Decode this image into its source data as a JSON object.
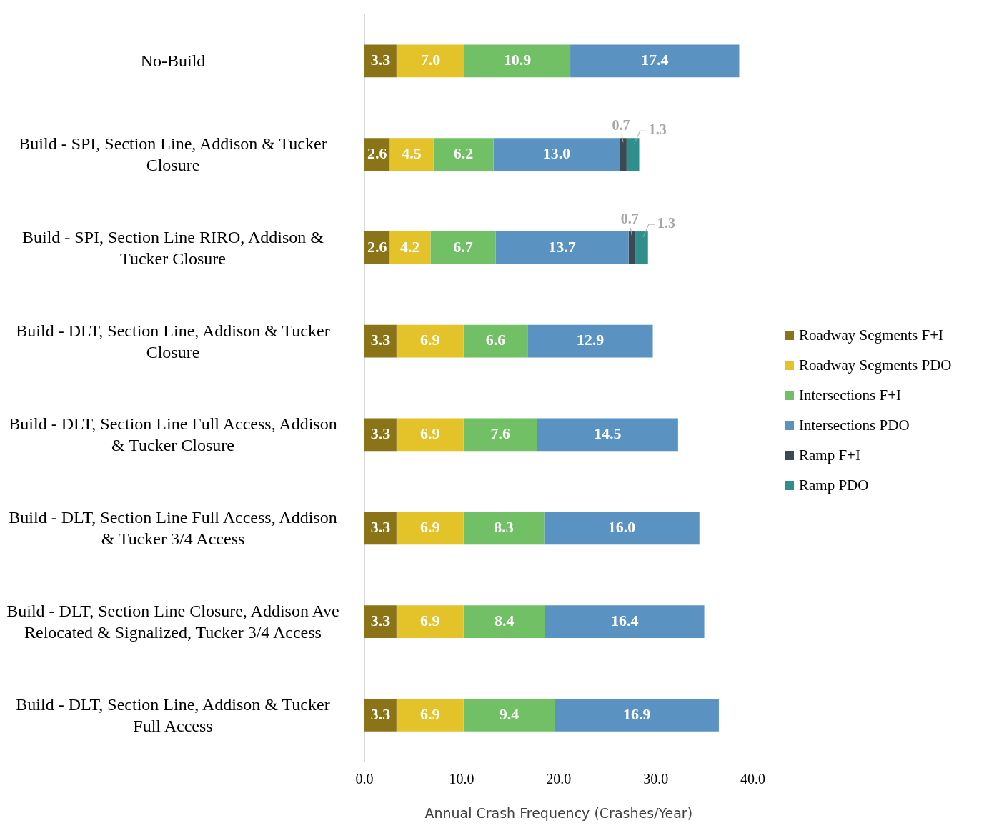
{
  "chart_data": {
    "type": "bar",
    "orientation": "horizontal",
    "stacked": true,
    "categories": [
      "No-Build",
      "Build - SPI, Section Line, Addison & Tucker Closure",
      "Build - SPI, Section Line RIRO, Addison & Tucker Closure",
      "Build - DLT, Section Line, Addison & Tucker Closure",
      "Build - DLT, Section Line Full Access, Addison & Tucker Closure",
      "Build - DLT, Section Line Full Access, Addison & Tucker 3/4 Access",
      "Build - DLT, Section Line Closure, Addison Ave Relocated & Signalized, Tucker 3/4 Access",
      "Build - DLT, Section Line, Addison & Tucker Full Access"
    ],
    "series": [
      {
        "name": "Roadway Segments F+I",
        "color": "#8b7317",
        "values": [
          3.3,
          2.6,
          2.6,
          3.3,
          3.3,
          3.3,
          3.3,
          3.3
        ],
        "value_labels": [
          "3.3",
          "2.6",
          "2.6",
          "3.3",
          "3.3",
          "3.3",
          "3.3",
          "3.3"
        ]
      },
      {
        "name": "Roadway Segments PDO",
        "color": "#e3c22a",
        "values": [
          7.0,
          4.5,
          4.2,
          6.9,
          6.9,
          6.9,
          6.9,
          6.9
        ],
        "value_labels": [
          "7.0",
          "4.5",
          "4.2",
          "6.9",
          "6.9",
          "6.9",
          "6.9",
          "6.9"
        ]
      },
      {
        "name": "Intersections F+I",
        "color": "#72c066",
        "values": [
          10.9,
          6.2,
          6.7,
          6.6,
          7.6,
          8.3,
          8.4,
          9.4
        ],
        "value_labels": [
          "10.9",
          "6.2",
          "6.7",
          "6.6",
          "7.6",
          "8.3",
          "8.4",
          "9.4"
        ]
      },
      {
        "name": "Intersections PDO",
        "color": "#5a93c2",
        "values": [
          17.4,
          13.0,
          13.7,
          12.9,
          14.5,
          16.0,
          16.4,
          16.9
        ],
        "value_labels": [
          "17.4",
          "13.0",
          "13.7",
          "12.9",
          "14.5",
          "16.0",
          "16.4",
          "16.9"
        ]
      },
      {
        "name": "Ramp F+I",
        "color": "#3a4a55",
        "values": [
          null,
          0.7,
          0.7,
          null,
          null,
          null,
          null,
          null
        ],
        "value_labels": [
          null,
          "0.7",
          "0.7",
          null,
          null,
          null,
          null,
          null
        ]
      },
      {
        "name": "Ramp PDO",
        "color": "#2e8f8c",
        "values": [
          null,
          1.3,
          1.3,
          null,
          null,
          null,
          null,
          null
        ],
        "value_labels": [
          null,
          "1.3",
          "1.3",
          null,
          null,
          null,
          null,
          null
        ]
      }
    ],
    "xlim": [
      0,
      40
    ],
    "xticks": [
      {
        "value": 0,
        "label": "0.0"
      },
      {
        "value": 10,
        "label": "10.0"
      },
      {
        "value": 20,
        "label": "20.0"
      },
      {
        "value": 30,
        "label": "30.0"
      },
      {
        "value": 40,
        "label": "40.0"
      }
    ],
    "xlabel": "Annual Crash Frequency (Crashes/Year)",
    "grid": false,
    "legend": "right"
  }
}
